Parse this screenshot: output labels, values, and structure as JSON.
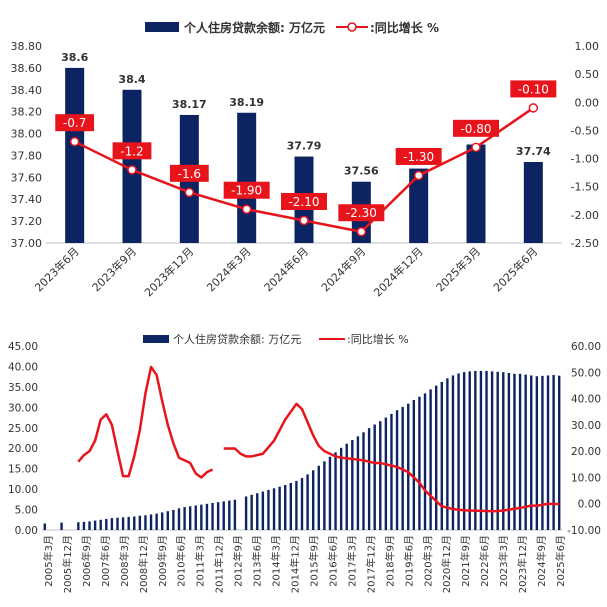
{
  "colors": {
    "bar": "#0d2463",
    "line": "#e8141c",
    "axis": "#bfbfbf",
    "text": "#333333",
    "label_box": "#e8141c",
    "label_text": "#ffffff"
  },
  "chart_data": [
    {
      "type": "bar+line",
      "legend": {
        "bar": "个人住房贷款余额: 万亿元",
        "line": ":同比增长 %",
        "position": "top-center"
      },
      "categories": [
        "2023年6月",
        "2023年9月",
        "2023年12月",
        "2024年3月",
        "2024年6月",
        "2024年9月",
        "2024年12月",
        "2025年3月",
        "2025年6月"
      ],
      "series": [
        {
          "name": "个人住房贷款余额: 万亿元",
          "kind": "bar",
          "axis": "left",
          "values": [
            38.6,
            38.4,
            38.17,
            38.19,
            37.79,
            37.56,
            37.68,
            37.9,
            37.74
          ],
          "labels": [
            "38.6",
            "38.4",
            "38.17",
            "38.19",
            "37.79",
            "37.56",
            "",
            "",
            "37.74"
          ]
        },
        {
          "name": ":同比增长 %",
          "kind": "line",
          "axis": "right",
          "values": [
            -0.7,
            -1.2,
            -1.6,
            -1.9,
            -2.1,
            -2.3,
            -1.3,
            -0.8,
            -0.1
          ],
          "labels": [
            "-0.7",
            "-1.2",
            "-1.6",
            "-1.90",
            "-2.10",
            "-2.30",
            "-1.30",
            "-0.80",
            "-0.10"
          ]
        }
      ],
      "left_axis": {
        "min": 37.0,
        "max": 38.8,
        "step": 0.2,
        "ticks": [
          "37.00",
          "37.20",
          "37.40",
          "37.60",
          "37.80",
          "38.00",
          "38.20",
          "38.40",
          "38.60",
          "38.80"
        ]
      },
      "right_axis": {
        "min": -2.5,
        "max": 1.0,
        "step": 0.5,
        "ticks": [
          "-2.50",
          "-2.00",
          "-1.50",
          "-1.00",
          "-0.50",
          "0.00",
          "0.50",
          "1.00"
        ]
      },
      "grid": false
    },
    {
      "type": "bar+line",
      "legend": {
        "bar": "个人住房贷款余额: 万亿元",
        "line": ":同比增长 %",
        "position": "top-center"
      },
      "x_tick_labels": [
        "2005年3月",
        "2005年12月",
        "2006年9月",
        "2007年6月",
        "2008年3月",
        "2008年12月",
        "2009年9月",
        "2010年6月",
        "2011年3月",
        "2011年12月",
        "2012年9月",
        "2013年6月",
        "2014年3月",
        "2014年12月",
        "2015年9月",
        "2016年6月",
        "2017年3月",
        "2017年12月",
        "2018年9月",
        "2019年6月",
        "2020年3月",
        "2020年12月",
        "2021年9月",
        "2022年6月",
        "2023年3月",
        "2023年12月",
        "2024年9月",
        "2025年6月"
      ],
      "series": [
        {
          "name": "个人住房贷款余额: 万亿元",
          "kind": "bar",
          "axis": "left",
          "values": [
            1.6,
            null,
            null,
            1.8,
            null,
            null,
            1.9,
            2.0,
            2.1,
            2.3,
            2.5,
            2.7,
            2.9,
            3.0,
            3.1,
            3.2,
            3.3,
            3.5,
            3.6,
            3.8,
            4.0,
            4.3,
            4.6,
            4.9,
            5.3,
            5.6,
            5.8,
            6.0,
            6.2,
            6.4,
            6.6,
            6.8,
            7.0,
            7.2,
            7.4,
            null,
            8.2,
            8.6,
            9.0,
            9.4,
            9.8,
            10.2,
            10.6,
            11.0,
            11.5,
            12.0,
            12.7,
            13.6,
            14.6,
            15.7,
            16.8,
            17.9,
            19.0,
            20.1,
            21.1,
            22.0,
            22.9,
            23.9,
            24.9,
            25.8,
            26.6,
            27.5,
            28.4,
            29.3,
            30.1,
            30.9,
            31.8,
            32.6,
            33.4,
            34.4,
            35.3,
            36.2,
            37.1,
            37.8,
            38.3,
            38.6,
            38.8,
            38.9,
            38.9,
            38.9,
            38.8,
            38.7,
            38.6,
            38.4,
            38.2,
            38.19,
            38.0,
            37.8,
            37.6,
            37.7,
            37.8,
            37.9,
            37.74
          ]
        },
        {
          "name": ":同比增长 %",
          "kind": "line",
          "axis": "right",
          "values": [
            null,
            null,
            null,
            null,
            null,
            null,
            16.0,
            18.5,
            20.0,
            24.0,
            32.0,
            34.0,
            30.0,
            20.0,
            10.5,
            10.5,
            18.0,
            28.0,
            42.0,
            52.0,
            49.0,
            39.0,
            30.0,
            23.0,
            17.5,
            16.5,
            15.5,
            11.5,
            10.0,
            12.0,
            13.0,
            null,
            21.0,
            21.0,
            21.0,
            19.0,
            18.0,
            18.0,
            18.5,
            19.0,
            21.5,
            24.0,
            28.0,
            32.0,
            35.0,
            38.0,
            36.0,
            31.0,
            26.0,
            22.0,
            20.0,
            19.0,
            18.0,
            17.5,
            17.3,
            17.0,
            16.8,
            16.5,
            16.0,
            15.5,
            15.5,
            15.0,
            14.5,
            14.0,
            13.0,
            12.0,
            10.0,
            8.0,
            5.0,
            3.0,
            1.0,
            -1.0,
            -1.5,
            -2.0,
            -2.3,
            -2.5,
            -2.6,
            -2.7,
            -2.7,
            -2.8,
            -2.8,
            -2.8,
            -2.6,
            -2.3,
            -1.9,
            -1.6,
            -1.2,
            -0.7,
            -0.8,
            -0.4,
            0.0,
            -0.1,
            -0.1
          ]
        }
      ],
      "left_axis": {
        "min": 0,
        "max": 45,
        "step": 5,
        "ticks": [
          "0.00",
          "5.00",
          "10.00",
          "15.00",
          "20.00",
          "25.00",
          "30.00",
          "35.00",
          "40.00",
          "45.00"
        ]
      },
      "right_axis": {
        "min": -10,
        "max": 60,
        "step": 10,
        "ticks": [
          "-10.00",
          "0.00",
          "10.00",
          "20.00",
          "30.00",
          "40.00",
          "50.00",
          "60.00"
        ]
      },
      "grid": false
    }
  ]
}
